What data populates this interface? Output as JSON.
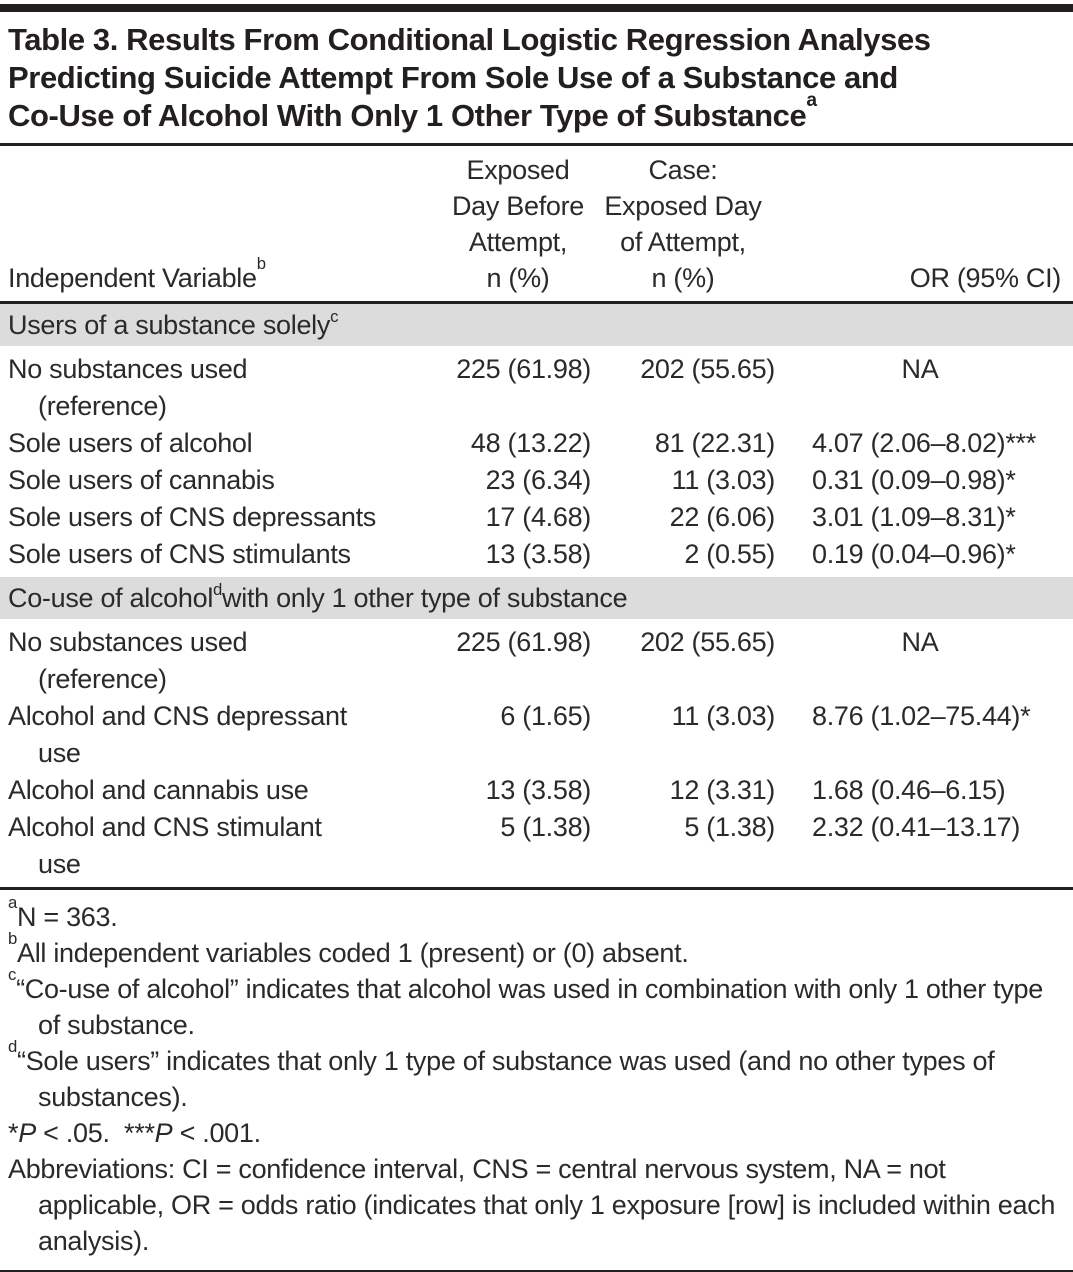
{
  "colors": {
    "band_gray": "#dcdcdc",
    "text": "#2a2a2b",
    "rule_black": "#231f20"
  },
  "title": {
    "text": "Table 3. Results From Conditional Logistic Regression Analyses\nPredicting Suicide Attempt From Sole Use of a Substance and\nCo-Use of Alcohol With Only 1 Other Type of Substance",
    "sup": "a"
  },
  "header": {
    "col1": {
      "text": "Independent Variable",
      "sup": "b"
    },
    "col2": "Exposed\nDay Before\nAttempt,\nn (%)",
    "col3": "Case:\nExposed Day\nof Attempt,\nn (%)",
    "col4": "OR (95% CI)"
  },
  "sections": [
    {
      "header": {
        "pre": "Users of a substance solely",
        "sup": "c",
        "post": ""
      },
      "rows": [
        {
          "label": "No substances used",
          "label2": "(reference)",
          "exposed_before": "225 (61.98)",
          "exposed_day": "202 (55.65)",
          "or": "NA"
        },
        {
          "label": "Sole users of alcohol",
          "exposed_before": "48 (13.22)",
          "exposed_day": "81 (22.31)",
          "or": "4.07 (2.06–8.02)***"
        },
        {
          "label": "Sole users of cannabis",
          "exposed_before": "23 (6.34)",
          "exposed_day": "11 (3.03)",
          "or": "0.31 (0.09–0.98)*"
        },
        {
          "label": "Sole users of CNS depressants",
          "exposed_before": "17 (4.68)",
          "exposed_day": "22 (6.06)",
          "or": "3.01 (1.09–8.31)*"
        },
        {
          "label": "Sole users of CNS stimulants",
          "exposed_before": "13 (3.58)",
          "exposed_day": "2 (0.55)",
          "or": "0.19 (0.04–0.96)*"
        }
      ]
    },
    {
      "header": {
        "pre": "Co-use of alcohol",
        "sup": "d",
        "post": " with only 1 other type of substance"
      },
      "rows": [
        {
          "label": "No substances used",
          "label2": "(reference)",
          "exposed_before": "225 (61.98)",
          "exposed_day": "202 (55.65)",
          "or": "NA"
        },
        {
          "label": "Alcohol and CNS depressant",
          "label2": "use",
          "exposed_before": "6 (1.65)",
          "exposed_day": "11 (3.03)",
          "or": "8.76 (1.02–75.44)*"
        },
        {
          "label": "Alcohol and cannabis use",
          "exposed_before": "13 (3.58)",
          "exposed_day": "12 (3.31)",
          "or": "1.68 (0.46–6.15)"
        },
        {
          "label": "Alcohol and CNS stimulant",
          "label2": "use",
          "exposed_before": "5 (1.38)",
          "exposed_day": "5 (1.38)",
          "or": "2.32 (0.41–13.17)"
        }
      ]
    }
  ],
  "footnotes": {
    "a": {
      "sup": "a",
      "text": "N = 363."
    },
    "b": {
      "sup": "b",
      "text": "All independent variables coded 1 (present) or (0) absent."
    },
    "c": {
      "sup": "c",
      "text": "“Co-use of alcohol” indicates that alcohol was used in combination with only 1 other type of substance."
    },
    "d": {
      "sup": "d",
      "text": "“Sole users” indicates that only 1 type of substance was used (and no other types of substances)."
    },
    "significance": {
      "seg1": "*",
      "p1": "P",
      "seg2": " < .05.  ",
      "seg3": "***",
      "p2": "P",
      "seg4": " < .001."
    },
    "abbreviations": "Abbreviations: CI = confidence interval, CNS = central nervous system, NA = not applicable, OR = odds ratio (indicates that only 1 exposure [row] is included within each analysis)."
  }
}
